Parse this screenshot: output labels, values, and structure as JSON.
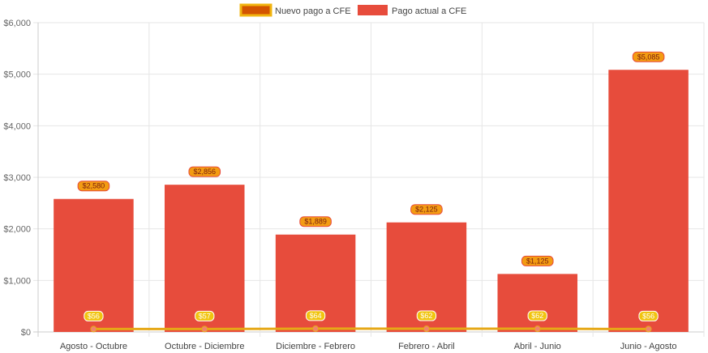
{
  "colors": {
    "bar": "#e74c3c",
    "line": "#e6a817",
    "legend_line_fill": "#d35400",
    "legend_line_border": "#f1b40f",
    "bar_label_bg": "#f39c12",
    "bar_label_border": "#e74c3c",
    "line_label_bg": "#f1c40f",
    "point": "#f0846e",
    "grid": "#e6e6e6"
  },
  "chart_data": {
    "type": "bar",
    "categories": [
      "Agosto - Octubre",
      "Octubre - Diciembre",
      "Diciembre - Febrero",
      "Febrero - Abril",
      "Abril - Junio",
      "Junio - Agosto"
    ],
    "series": [
      {
        "name": "Nuevo pago a CFE",
        "type": "line",
        "values": [
          56,
          57,
          64,
          62,
          62,
          56
        ],
        "labels": [
          "$56",
          "$57",
          "$64",
          "$62",
          "$62",
          "$56"
        ]
      },
      {
        "name": "Pago actual a CFE",
        "type": "bar",
        "values": [
          2580,
          2856,
          1889,
          2125,
          1125,
          5085
        ],
        "labels": [
          "$2,580",
          "$2,856",
          "$1,889",
          "$2,125",
          "$1,125",
          "$5,085"
        ]
      }
    ],
    "yticks": [
      0,
      1000,
      2000,
      3000,
      4000,
      5000,
      6000
    ],
    "ytick_labels": [
      "$0",
      "$1,000",
      "$2,000",
      "$3,000",
      "$4,000",
      "$5,000",
      "$6,000"
    ],
    "ylim": [
      0,
      6000
    ],
    "grid": true,
    "legend_position": "top-center"
  }
}
